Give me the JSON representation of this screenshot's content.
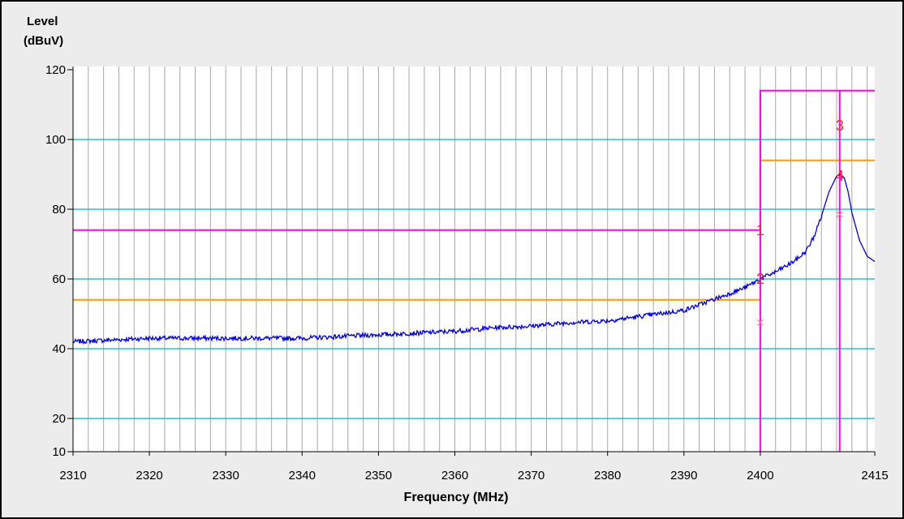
{
  "chart_data": {
    "type": "line",
    "title": "",
    "ylabel_line1": "Level",
    "ylabel_line2": "(dBuV)",
    "xlabel": "Frequency (MHz)",
    "xlim": [
      2310,
      2415
    ],
    "ylim": [
      10,
      120
    ],
    "x_ticks": [
      2310,
      2320,
      2330,
      2340,
      2350,
      2360,
      2370,
      2380,
      2390,
      2400,
      2415
    ],
    "y_ticks": [
      10,
      20,
      40,
      60,
      80,
      100,
      120
    ],
    "grid": true,
    "colors": {
      "trace": "#0000e0",
      "peak_limit": "#ff00ff",
      "average_limit": "#ff9900",
      "hgrid": "#00b8c8",
      "vgrid": "#a8a8a8",
      "marker_text": "#ff2020",
      "marker_x": "#ff8080"
    },
    "series": [
      {
        "role": "trace",
        "x": [
          2310,
          2315,
          2320,
          2325,
          2330,
          2335,
          2340,
          2345,
          2350,
          2355,
          2360,
          2365,
          2370,
          2375,
          2380,
          2385,
          2390,
          2395,
          2398,
          2400,
          2402,
          2404,
          2405,
          2406,
          2407,
          2408,
          2409,
          2410,
          2410.5,
          2411,
          2411.5,
          2412,
          2413,
          2414,
          2415
        ],
        "y": [
          42,
          42.5,
          43,
          43,
          43,
          43,
          43,
          43.5,
          44,
          44.5,
          45,
          46,
          46.5,
          47.5,
          48,
          49.5,
          51,
          55,
          57.5,
          60,
          62,
          64.5,
          66,
          68,
          72,
          78,
          85,
          89.5,
          90,
          89,
          85,
          79,
          71,
          66.5,
          65
        ]
      },
      {
        "role": "peak-limit",
        "x": [
          2310,
          2400,
          2400,
          2415
        ],
        "y": [
          74,
          74,
          114,
          114
        ]
      },
      {
        "role": "average-limit",
        "x": [
          2310,
          2400,
          2400,
          2415
        ],
        "y": [
          54,
          54,
          94,
          94
        ]
      }
    ],
    "vlines": [
      2400,
      2410.4
    ],
    "markers": [
      {
        "label": "1",
        "x": 2400,
        "y": 74
      },
      {
        "label": "2",
        "x": 2400,
        "y": 60
      },
      {
        "label": "3",
        "x": 2410.4,
        "y": 104
      },
      {
        "label": "4",
        "x": 2410.4,
        "y": 89.5
      }
    ],
    "x_marks": [
      {
        "x": 2400,
        "y": 47.5
      },
      {
        "x": 2410.4,
        "y": 78.5
      }
    ]
  }
}
